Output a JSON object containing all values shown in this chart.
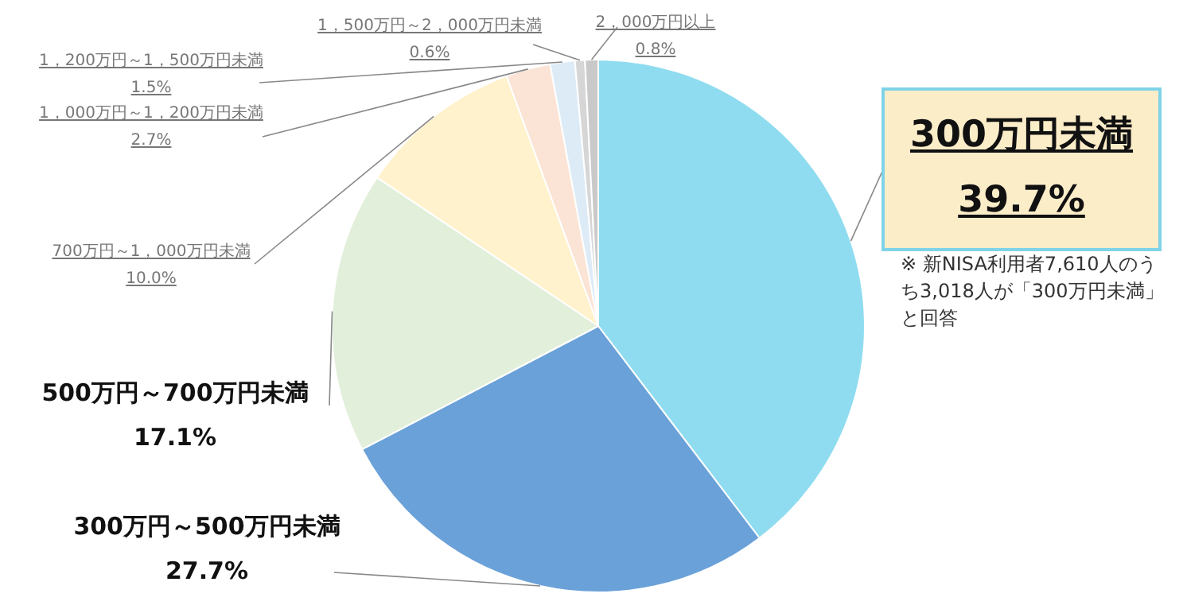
{
  "chart_data": {
    "type": "pie",
    "categories": [
      "300万円未満",
      "300万円～500万円未満",
      "500万円～700万円未満",
      "700万円～1，000万円未満",
      "1，000万円～1，200万円未満",
      "1，200万円～1，500万円未満",
      "1，500万円～2，000万円未満",
      "2，000万円以上"
    ],
    "values": [
      39.7,
      27.7,
      17.1,
      10.0,
      2.7,
      1.5,
      0.6,
      0.8
    ],
    "value_labels": [
      "39.7%",
      "27.7%",
      "17.1%",
      "10.0%",
      "2.7%",
      "1.5%",
      "0.6%",
      "0.8%"
    ],
    "colors": [
      "#8fdcf0",
      "#6aa1d8",
      "#e2efda",
      "#fff2cc",
      "#fbe4d5",
      "#ddebf7",
      "#d6d6d6",
      "#c9c9c9"
    ],
    "annotations": [
      "※ 新NISA利用者7,610人のうち3,018人が「300万円未満」と回答"
    ]
  }
}
